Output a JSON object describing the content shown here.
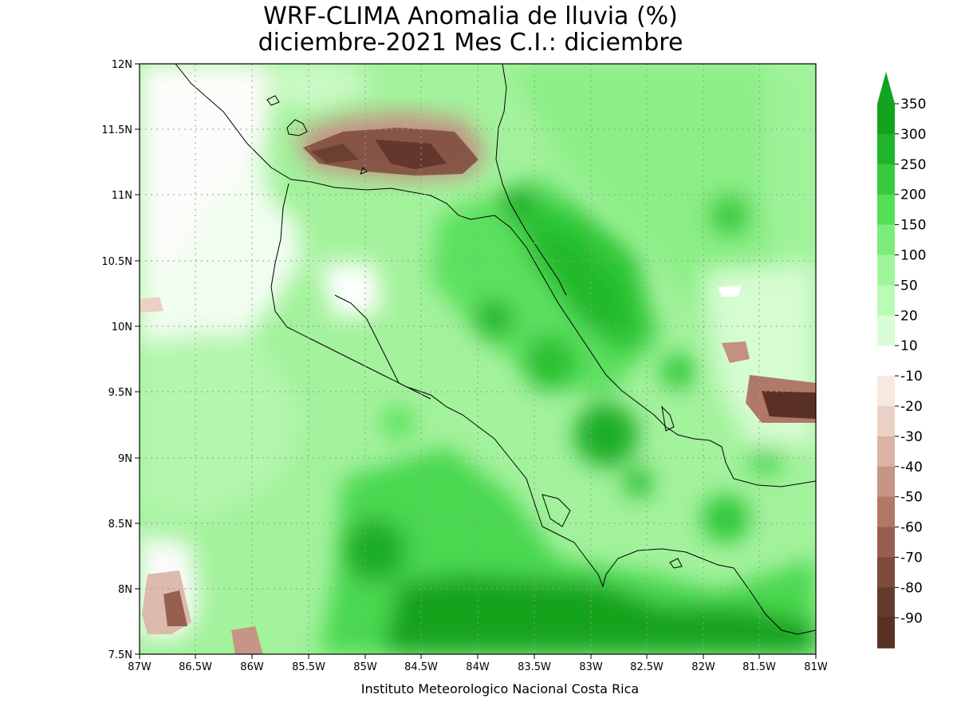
{
  "title_line1": "WRF-CLIMA Anomalia de lluvia (%)",
  "title_line2": "diciembre-2021 Mes C.I.: diciembre",
  "credit": "Instituto Meteorologico Nacional Costa Rica",
  "axes": {
    "lon_ticks": [
      "87W",
      "86.5W",
      "86W",
      "85.5W",
      "85W",
      "84.5W",
      "84W",
      "83.5W",
      "83W",
      "82.5W",
      "82W",
      "81.5W",
      "81W"
    ],
    "lat_ticks": [
      "12N",
      "11.5N",
      "11N",
      "10.5N",
      "10N",
      "9.5N",
      "9N",
      "8.5N",
      "8N",
      "7.5N"
    ],
    "lon_range": [
      -87,
      -81
    ],
    "lat_range": [
      7.5,
      12
    ]
  },
  "colorbar": {
    "labels": [
      "350",
      "300",
      "250",
      "200",
      "150",
      "100",
      "50",
      "20",
      "10",
      "-10",
      "-20",
      "-30",
      "-40",
      "-50",
      "-60",
      "-70",
      "-80",
      "-90"
    ],
    "colors": [
      "#13a31e",
      "#1fb52c",
      "#37cc3f",
      "#52e156",
      "#7ced7c",
      "#9ef59b",
      "#bafbb6",
      "#d9fdd6",
      "#ffffff",
      "#f8e9e0",
      "#ebd1c5",
      "#dab3a5",
      "#c69585",
      "#b07867",
      "#965f4f",
      "#7d4a3c",
      "#653a2e",
      "#5a3025"
    ],
    "top_arrow_color": "#13a31e",
    "bottom_arrow_color": "#5a3025"
  }
}
